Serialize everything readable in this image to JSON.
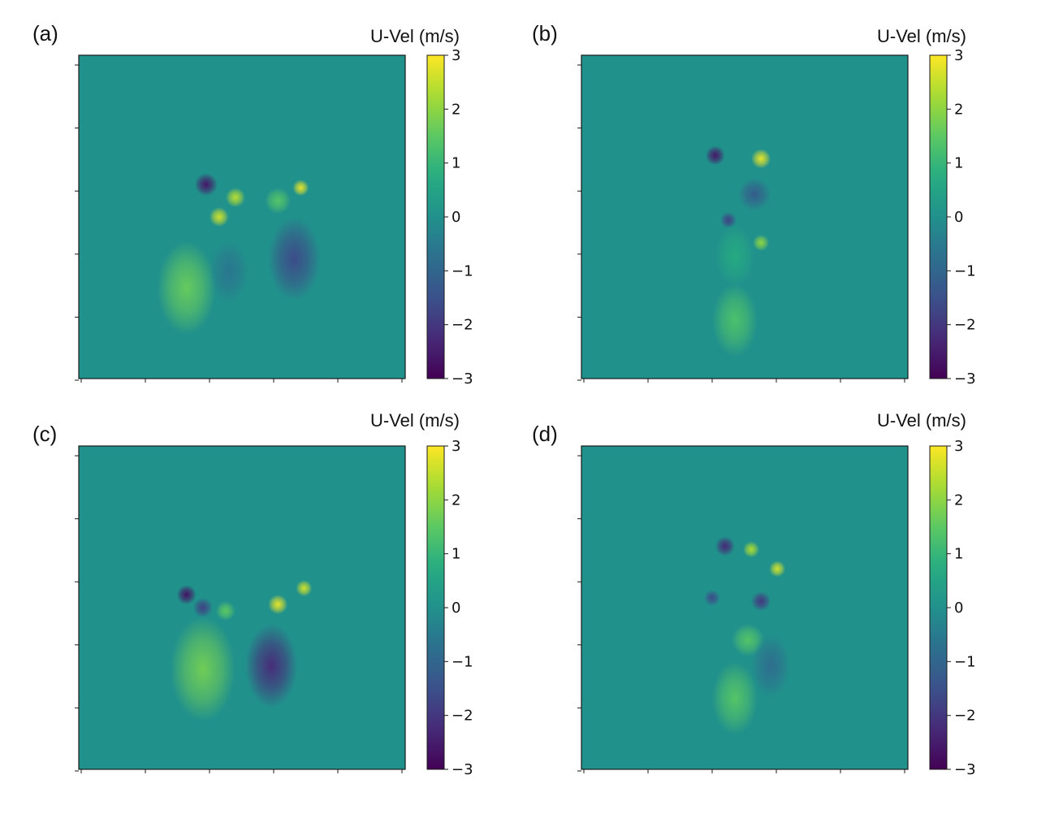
{
  "colors": {
    "background": "#21918c",
    "positive_feature": "#d8e219",
    "negative_feature": "#3b1c6b",
    "frame": "#1a1a1a"
  },
  "colorbar": {
    "title": "U-Vel (m/s)",
    "colormap": "viridis",
    "range": [
      -3,
      3
    ],
    "ticks": [
      "3",
      "2",
      "1",
      "0",
      "−1",
      "−2",
      "−3"
    ]
  },
  "chart_data": [
    {
      "type": "heatmap",
      "panel_label": "(a)",
      "colorbar_label": "U-Vel (m/s)",
      "vmin": -3,
      "vmax": 3,
      "x_tick_labels_visible": false,
      "y_tick_labels_visible": false,
      "features": [
        {
          "x": 0.39,
          "y": 0.4,
          "value": -2.6,
          "r": 0.035
        },
        {
          "x": 0.48,
          "y": 0.44,
          "value": 2.4,
          "r": 0.03
        },
        {
          "x": 0.43,
          "y": 0.5,
          "value": 2.6,
          "r": 0.03
        },
        {
          "x": 0.68,
          "y": 0.41,
          "value": 2.8,
          "r": 0.025
        },
        {
          "x": 0.61,
          "y": 0.45,
          "value": 1.4,
          "r": 0.04
        },
        {
          "x": 0.33,
          "y": 0.72,
          "value": 1.6,
          "r": 0.09
        },
        {
          "x": 0.66,
          "y": 0.63,
          "value": -1.6,
          "r": 0.08
        },
        {
          "x": 0.46,
          "y": 0.67,
          "value": -0.6,
          "r": 0.06
        }
      ]
    },
    {
      "type": "heatmap",
      "panel_label": "(b)",
      "colorbar_label": "U-Vel (m/s)",
      "vmin": -3,
      "vmax": 3,
      "x_tick_labels_visible": false,
      "y_tick_labels_visible": false,
      "features": [
        {
          "x": 0.41,
          "y": 0.31,
          "value": -2.6,
          "r": 0.03
        },
        {
          "x": 0.55,
          "y": 0.32,
          "value": 2.8,
          "r": 0.03
        },
        {
          "x": 0.53,
          "y": 0.43,
          "value": -1.2,
          "r": 0.05
        },
        {
          "x": 0.45,
          "y": 0.51,
          "value": -1.8,
          "r": 0.025
        },
        {
          "x": 0.55,
          "y": 0.58,
          "value": 2.0,
          "r": 0.025
        },
        {
          "x": 0.47,
          "y": 0.62,
          "value": 0.7,
          "r": 0.06
        },
        {
          "x": 0.47,
          "y": 0.82,
          "value": 1.3,
          "r": 0.07
        }
      ]
    },
    {
      "type": "heatmap",
      "panel_label": "(c)",
      "colorbar_label": "U-Vel (m/s)",
      "vmin": -3,
      "vmax": 3,
      "x_tick_labels_visible": false,
      "y_tick_labels_visible": false,
      "features": [
        {
          "x": 0.33,
          "y": 0.46,
          "value": -2.7,
          "r": 0.03
        },
        {
          "x": 0.38,
          "y": 0.5,
          "value": -1.8,
          "r": 0.03
        },
        {
          "x": 0.61,
          "y": 0.49,
          "value": 2.8,
          "r": 0.03
        },
        {
          "x": 0.69,
          "y": 0.44,
          "value": 2.6,
          "r": 0.025
        },
        {
          "x": 0.45,
          "y": 0.51,
          "value": 1.5,
          "r": 0.03
        },
        {
          "x": 0.38,
          "y": 0.69,
          "value": 1.7,
          "r": 0.1
        },
        {
          "x": 0.59,
          "y": 0.68,
          "value": -2.2,
          "r": 0.08
        }
      ]
    },
    {
      "type": "heatmap",
      "panel_label": "(d)",
      "colorbar_label": "U-Vel (m/s)",
      "vmin": -3,
      "vmax": 3,
      "x_tick_labels_visible": false,
      "y_tick_labels_visible": false,
      "features": [
        {
          "x": 0.44,
          "y": 0.31,
          "value": -2.3,
          "r": 0.03
        },
        {
          "x": 0.52,
          "y": 0.32,
          "value": 2.3,
          "r": 0.025
        },
        {
          "x": 0.6,
          "y": 0.38,
          "value": 2.6,
          "r": 0.025
        },
        {
          "x": 0.55,
          "y": 0.48,
          "value": -2.0,
          "r": 0.03
        },
        {
          "x": 0.4,
          "y": 0.47,
          "value": -1.6,
          "r": 0.025
        },
        {
          "x": 0.51,
          "y": 0.6,
          "value": 1.4,
          "r": 0.05
        },
        {
          "x": 0.47,
          "y": 0.78,
          "value": 1.4,
          "r": 0.07
        },
        {
          "x": 0.58,
          "y": 0.68,
          "value": -0.8,
          "r": 0.06
        }
      ]
    }
  ]
}
